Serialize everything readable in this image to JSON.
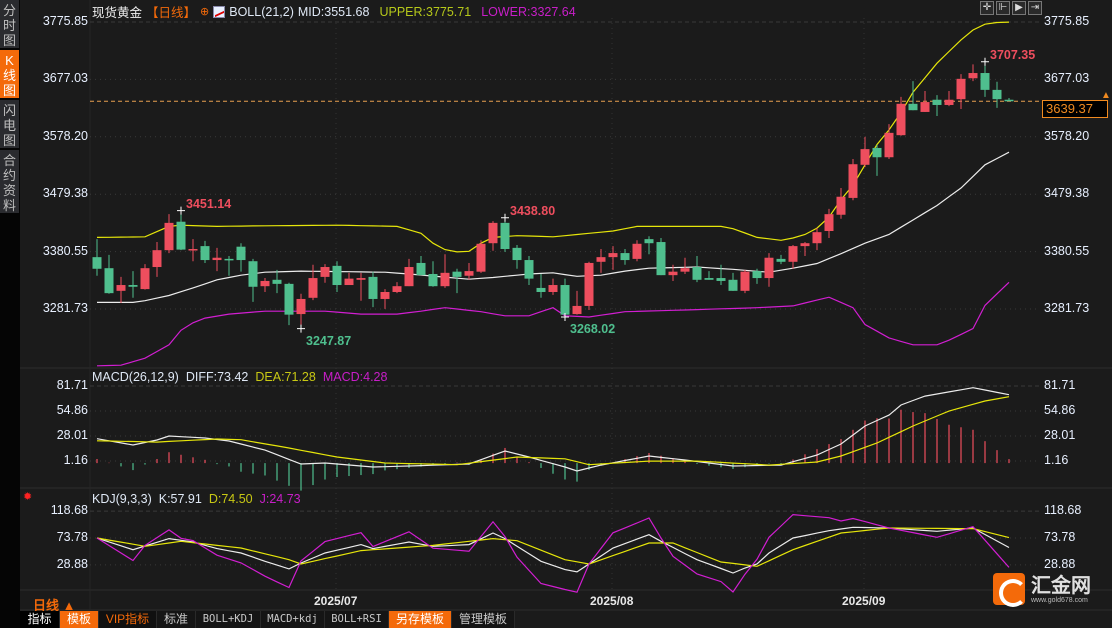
{
  "left_tabs": [
    {
      "label": "分时图",
      "active": false
    },
    {
      "label": "K线图",
      "active": true
    },
    {
      "label": "闪电图",
      "active": false
    },
    {
      "label": "合约资料",
      "active": false
    }
  ],
  "header": {
    "symbol": "现货黄金",
    "period": "【日线】",
    "boll_label": "BOLL(21,2)",
    "mid": "MID:3551.68",
    "upper": "UPPER:3775.71",
    "lower": "LOWER:3327.64"
  },
  "macd_legend": {
    "name": "MACD(26,12,9)",
    "dif": "DIFF:73.42",
    "dea": "DEA:71.28",
    "macd": "MACD:4.28"
  },
  "kdj_legend": {
    "name": "KDJ(9,3,3)",
    "k": "K:57.91",
    "d": "D:74.50",
    "j": "J:24.73"
  },
  "current_price": "3639.37",
  "period_selector": "日线 ▲",
  "bottom_tabs": [
    {
      "label": "指标",
      "style": "white"
    },
    {
      "label": "模板",
      "style": "orange"
    },
    {
      "label": "VIP指标",
      "style": "otext"
    },
    {
      "label": "标准",
      "style": ""
    },
    {
      "label": "BOLL+KDJ",
      "style": "mono"
    },
    {
      "label": "MACD+kdj",
      "style": "mono"
    },
    {
      "label": "BOLL+RSI",
      "style": "mono"
    },
    {
      "label": "另存模板",
      "style": "orange"
    },
    {
      "label": "管理模板",
      "style": ""
    }
  ],
  "toolbar_icons": [
    "crosshair-icon",
    "zoom-in-icon",
    "play-icon",
    "scroll-right-icon"
  ],
  "logo": {
    "name": "汇金网",
    "url": "www.gold678.com"
  },
  "colors": {
    "up": "#ee4e5e",
    "down": "#4fbf8e",
    "mid": "#ececec",
    "upper": "#e6e60a",
    "lower": "#d21ed2",
    "bg": "#1b1b1b",
    "accent": "#f46a0a"
  },
  "chart_data": {
    "type": "candlestick",
    "title": "现货黄金 日线",
    "x_labels": [
      {
        "label": "2025/07",
        "index": 20
      },
      {
        "label": "2025/08",
        "index": 43
      },
      {
        "label": "2025/09",
        "index": 64
      }
    ],
    "price_ticks": [
      "3775.85",
      "3677.03",
      "3578.20",
      "3479.38",
      "3380.55",
      "3281.73"
    ],
    "price_range": [
      3281.73,
      3775.85
    ],
    "candles_ohlc": [
      [
        3371,
        3402,
        3339,
        3351
      ],
      [
        3352,
        3375,
        3308,
        3309
      ],
      [
        3313,
        3337,
        3292,
        3323
      ],
      [
        3323,
        3347,
        3301,
        3320
      ],
      [
        3316,
        3359,
        3315,
        3352
      ],
      [
        3354,
        3397,
        3337,
        3383
      ],
      [
        3383,
        3445,
        3378,
        3430
      ],
      [
        3432,
        3451.14,
        3383,
        3384
      ],
      [
        3383,
        3402,
        3364,
        3385
      ],
      [
        3390,
        3399,
        3361,
        3366
      ],
      [
        3366,
        3387,
        3347,
        3370
      ],
      [
        3368,
        3373,
        3339,
        3366
      ],
      [
        3389,
        3395,
        3346,
        3366
      ],
      [
        3364,
        3368,
        3294,
        3320
      ],
      [
        3321,
        3335,
        3311,
        3330
      ],
      [
        3332,
        3349,
        3309,
        3325
      ],
      [
        3325,
        3327,
        3254,
        3272
      ],
      [
        3273,
        3308,
        3247.87,
        3299
      ],
      [
        3301,
        3358,
        3297,
        3335
      ],
      [
        3337,
        3359,
        3327,
        3354
      ],
      [
        3356,
        3364,
        3311,
        3323
      ],
      [
        3323,
        3344,
        3323,
        3334
      ],
      [
        3332,
        3344,
        3296,
        3335
      ],
      [
        3337,
        3346,
        3285,
        3299
      ],
      [
        3299,
        3316,
        3282,
        3311
      ],
      [
        3311,
        3328,
        3309,
        3321
      ],
      [
        3321,
        3368,
        3321,
        3354
      ],
      [
        3361,
        3373,
        3340,
        3340
      ],
      [
        3342,
        3364,
        3320,
        3321
      ],
      [
        3321,
        3376,
        3318,
        3344
      ],
      [
        3346,
        3351,
        3309,
        3337
      ],
      [
        3339,
        3361,
        3332,
        3347
      ],
      [
        3346,
        3400,
        3344,
        3394
      ],
      [
        3395,
        3433,
        3382,
        3430
      ],
      [
        3430,
        3438.8,
        3380,
        3385
      ],
      [
        3387,
        3392,
        3351,
        3366
      ],
      [
        3366,
        3373,
        3323,
        3334
      ],
      [
        3318,
        3342,
        3301,
        3311
      ],
      [
        3311,
        3334,
        3306,
        3323
      ],
      [
        3323,
        3334,
        3268.02,
        3272
      ],
      [
        3273,
        3313,
        3272,
        3287
      ],
      [
        3287,
        3363,
        3280,
        3361
      ],
      [
        3363,
        3385,
        3344,
        3371
      ],
      [
        3371,
        3390,
        3349,
        3378
      ],
      [
        3378,
        3385,
        3358,
        3366
      ],
      [
        3368,
        3400,
        3364,
        3394
      ],
      [
        3402,
        3407,
        3376,
        3395
      ],
      [
        3397,
        3404,
        3340,
        3340
      ],
      [
        3340,
        3358,
        3330,
        3346
      ],
      [
        3346,
        3370,
        3342,
        3352
      ],
      [
        3354,
        3373,
        3328,
        3332
      ],
      [
        3335,
        3347,
        3332,
        3332
      ],
      [
        3335,
        3358,
        3323,
        3330
      ],
      [
        3332,
        3344,
        3313,
        3313
      ],
      [
        3313,
        3349,
        3309,
        3346
      ],
      [
        3347,
        3351,
        3325,
        3335
      ],
      [
        3335,
        3378,
        3320,
        3370
      ],
      [
        3368,
        3375,
        3359,
        3363
      ],
      [
        3363,
        3392,
        3351,
        3390
      ],
      [
        3390,
        3397,
        3373,
        3395
      ],
      [
        3395,
        3421,
        3383,
        3414
      ],
      [
        3416,
        3454,
        3404,
        3445
      ],
      [
        3444,
        3490,
        3437,
        3475
      ],
      [
        3473,
        3540,
        3469,
        3531
      ],
      [
        3530,
        3578,
        3526,
        3557
      ],
      [
        3559,
        3564,
        3511,
        3543
      ],
      [
        3543,
        3600,
        3540,
        3585
      ],
      [
        3581,
        3647,
        3580,
        3635
      ],
      [
        3635,
        3674,
        3624,
        3624
      ],
      [
        3621,
        3657,
        3621,
        3638
      ],
      [
        3642,
        3650,
        3614,
        3633
      ],
      [
        3633,
        3657,
        3631,
        3642
      ],
      [
        3643,
        3686,
        3626,
        3678
      ],
      [
        3679,
        3703,
        3674,
        3688
      ],
      [
        3688,
        3707.35,
        3647,
        3659
      ],
      [
        3659,
        3673,
        3628,
        3643
      ],
      [
        3642,
        3645,
        3640,
        3639.37
      ]
    ],
    "annotations": [
      {
        "index": 7,
        "value": "3451.14",
        "kind": "high"
      },
      {
        "index": 17,
        "value": "3247.87",
        "kind": "low"
      },
      {
        "index": 34,
        "value": "3438.80",
        "kind": "high"
      },
      {
        "index": 39,
        "value": "3268.02",
        "kind": "low"
      },
      {
        "index": 74,
        "value": "3707.35",
        "kind": "high"
      }
    ],
    "boll": {
      "upper": [
        [
          0,
          3405
        ],
        [
          4,
          3406
        ],
        [
          5,
          3415
        ],
        [
          6,
          3424
        ],
        [
          7,
          3426
        ],
        [
          10,
          3424
        ],
        [
          14,
          3425
        ],
        [
          20,
          3426
        ],
        [
          25,
          3424
        ],
        [
          27,
          3412
        ],
        [
          28,
          3395
        ],
        [
          29,
          3384
        ],
        [
          30,
          3380
        ],
        [
          31,
          3381
        ],
        [
          32,
          3395
        ],
        [
          33,
          3405
        ],
        [
          35,
          3408
        ],
        [
          38,
          3406
        ],
        [
          40,
          3410
        ],
        [
          43,
          3416
        ],
        [
          45,
          3424
        ],
        [
          52,
          3424
        ],
        [
          53,
          3420
        ],
        [
          55,
          3405
        ],
        [
          57,
          3400
        ],
        [
          58,
          3404
        ],
        [
          59,
          3410
        ],
        [
          60,
          3421
        ],
        [
          61,
          3440
        ],
        [
          62,
          3470
        ],
        [
          63,
          3495
        ],
        [
          64,
          3530
        ],
        [
          65,
          3565
        ],
        [
          66,
          3590
        ],
        [
          67,
          3620
        ],
        [
          68,
          3655
        ],
        [
          69,
          3680
        ],
        [
          70,
          3705
        ],
        [
          71,
          3725
        ],
        [
          72,
          3745
        ],
        [
          73,
          3762
        ],
        [
          74,
          3772
        ],
        [
          75,
          3775
        ],
        [
          76,
          3775.71
        ]
      ],
      "mid": [
        [
          0,
          3293
        ],
        [
          3,
          3293
        ],
        [
          4,
          3296
        ],
        [
          6,
          3305
        ],
        [
          8,
          3318
        ],
        [
          10,
          3332
        ],
        [
          12,
          3340
        ],
        [
          14,
          3345
        ],
        [
          17,
          3347
        ],
        [
          24,
          3345
        ],
        [
          26,
          3342
        ],
        [
          31,
          3333
        ],
        [
          33,
          3336
        ],
        [
          36,
          3342
        ],
        [
          38,
          3344
        ],
        [
          40,
          3338
        ],
        [
          42,
          3340
        ],
        [
          44,
          3347
        ],
        [
          46,
          3352
        ],
        [
          50,
          3354
        ],
        [
          53,
          3350
        ],
        [
          56,
          3345
        ],
        [
          58,
          3352
        ],
        [
          60,
          3360
        ],
        [
          62,
          3377
        ],
        [
          64,
          3395
        ],
        [
          66,
          3410
        ],
        [
          68,
          3435
        ],
        [
          70,
          3460
        ],
        [
          72,
          3490
        ],
        [
          74,
          3530
        ],
        [
          76,
          3551.68
        ]
      ],
      "lower": [
        [
          0,
          3184
        ],
        [
          2,
          3185
        ],
        [
          4,
          3197
        ],
        [
          6,
          3220
        ],
        [
          7,
          3245
        ],
        [
          8,
          3258
        ],
        [
          9,
          3266
        ],
        [
          11,
          3273
        ],
        [
          14,
          3278
        ],
        [
          19,
          3278
        ],
        [
          22,
          3273
        ],
        [
          25,
          3273
        ],
        [
          27,
          3278
        ],
        [
          29,
          3284
        ],
        [
          32,
          3277
        ],
        [
          34,
          3270
        ],
        [
          36,
          3270
        ],
        [
          38,
          3284
        ],
        [
          39,
          3270
        ],
        [
          41,
          3268
        ],
        [
          44,
          3277
        ],
        [
          49,
          3280
        ],
        [
          52,
          3282
        ],
        [
          55,
          3284
        ],
        [
          58,
          3287
        ],
        [
          60,
          3297
        ],
        [
          61,
          3302
        ],
        [
          63,
          3284
        ],
        [
          64,
          3255
        ],
        [
          66,
          3232
        ],
        [
          68,
          3220
        ],
        [
          70,
          3220
        ],
        [
          71,
          3228
        ],
        [
          73,
          3248
        ],
        [
          74,
          3288
        ],
        [
          76,
          3327.64
        ]
      ]
    },
    "macd": {
      "ticks": [
        "81.71",
        "54.86",
        "28.01",
        "1.16"
      ],
      "dif": [
        [
          0,
          26.2
        ],
        [
          3,
          19.4
        ],
        [
          5,
          24.8
        ],
        [
          6,
          29.1
        ],
        [
          9,
          27.0
        ],
        [
          11,
          23.7
        ],
        [
          14,
          14.0
        ],
        [
          17,
          -1.0
        ],
        [
          19,
          0.1
        ],
        [
          23,
          -4.2
        ],
        [
          26,
          -3.1
        ],
        [
          31,
          -1.0
        ],
        [
          34,
          13.0
        ],
        [
          36,
          6.5
        ],
        [
          39,
          -4.2
        ],
        [
          40,
          -8.5
        ],
        [
          42,
          -2.1
        ],
        [
          46,
          7.6
        ],
        [
          49,
          3.3
        ],
        [
          53,
          -3.1
        ],
        [
          57,
          -2.1
        ],
        [
          60,
          8.7
        ],
        [
          62,
          20.5
        ],
        [
          64,
          39.8
        ],
        [
          66,
          51.6
        ],
        [
          67,
          62.4
        ],
        [
          69,
          72.0
        ],
        [
          73,
          81.0
        ],
        [
          76,
          73.42
        ]
      ],
      "dea": [
        [
          0,
          24.0
        ],
        [
          5,
          22.6
        ],
        [
          10,
          25.9
        ],
        [
          12,
          25.1
        ],
        [
          16,
          16.2
        ],
        [
          20,
          6.5
        ],
        [
          24,
          0.1
        ],
        [
          30,
          -1.7
        ],
        [
          35,
          6.5
        ],
        [
          39,
          4.6
        ],
        [
          41,
          -1.7
        ],
        [
          46,
          2.2
        ],
        [
          50,
          2.2
        ],
        [
          56,
          -2.1
        ],
        [
          60,
          1.2
        ],
        [
          62,
          7.6
        ],
        [
          65,
          21.6
        ],
        [
          68,
          39.8
        ],
        [
          71,
          55.9
        ],
        [
          74,
          66.7
        ],
        [
          76,
          71.28
        ]
      ]
    },
    "kdj": {
      "ticks": [
        "118.68",
        "73.78",
        "28.88"
      ],
      "k": [
        [
          0,
          73.8
        ],
        [
          3,
          54.3
        ],
        [
          6,
          72.7
        ],
        [
          8,
          67.1
        ],
        [
          10,
          56.0
        ],
        [
          12,
          48.8
        ],
        [
          14,
          34.9
        ],
        [
          16,
          22.1
        ],
        [
          17,
          32.1
        ],
        [
          19,
          48.8
        ],
        [
          22,
          62.7
        ],
        [
          23,
          56.0
        ],
        [
          26,
          67.1
        ],
        [
          28,
          59.9
        ],
        [
          31,
          62.7
        ],
        [
          33,
          82.1
        ],
        [
          34,
          72.7
        ],
        [
          37,
          34.9
        ],
        [
          39,
          21.0
        ],
        [
          40,
          17.1
        ],
        [
          41,
          30.4
        ],
        [
          43,
          57.1
        ],
        [
          46,
          79.3
        ],
        [
          47,
          68.2
        ],
        [
          50,
          37.6
        ],
        [
          53,
          15.4
        ],
        [
          54,
          23.7
        ],
        [
          55,
          30.4
        ],
        [
          56,
          48.8
        ],
        [
          58,
          73.8
        ],
        [
          61,
          86.0
        ],
        [
          63,
          91.6
        ],
        [
          66,
          90.5
        ],
        [
          70,
          84.9
        ],
        [
          73,
          90.5
        ],
        [
          76,
          57.91
        ]
      ],
      "d": [
        [
          0,
          73.8
        ],
        [
          4,
          59.9
        ],
        [
          7,
          68.2
        ],
        [
          10,
          61.5
        ],
        [
          12,
          57.1
        ],
        [
          16,
          37.6
        ],
        [
          17,
          30.4
        ],
        [
          22,
          52.7
        ],
        [
          25,
          57.1
        ],
        [
          28,
          61.5
        ],
        [
          33,
          72.7
        ],
        [
          35,
          69.3
        ],
        [
          39,
          37.6
        ],
        [
          41,
          30.4
        ],
        [
          46,
          65.4
        ],
        [
          48,
          65.4
        ],
        [
          52,
          33.7
        ],
        [
          55,
          26.5
        ],
        [
          58,
          54.3
        ],
        [
          62,
          82.1
        ],
        [
          66,
          90.5
        ],
        [
          73,
          89.4
        ],
        [
          76,
          74.5
        ]
      ]
    }
  }
}
